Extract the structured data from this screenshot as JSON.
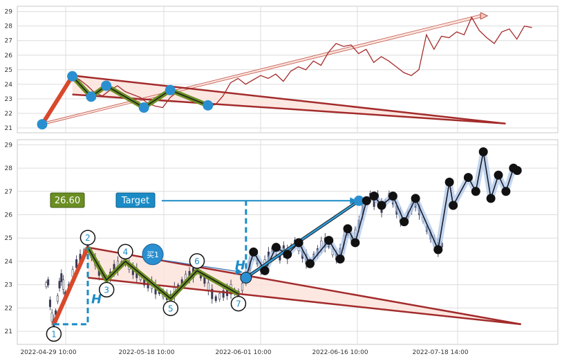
{
  "chart_data": [
    {
      "type": "line",
      "panel": "overview",
      "ylim": [
        21,
        29
      ],
      "yticks": [
        "21",
        "22",
        "23",
        "24",
        "25",
        "26",
        "27",
        "28",
        "29"
      ],
      "price_series": [
        [
          0,
          21.3
        ],
        [
          2,
          22.0
        ],
        [
          5,
          23.5
        ],
        [
          8,
          24.6
        ],
        [
          10,
          24.3
        ],
        [
          12,
          23.9
        ],
        [
          14,
          23.4
        ],
        [
          16,
          23.2
        ],
        [
          18,
          23.6
        ],
        [
          20,
          23.9
        ],
        [
          22,
          23.5
        ],
        [
          24,
          23.3
        ],
        [
          26,
          23.1
        ],
        [
          28,
          22.7
        ],
        [
          30,
          22.5
        ],
        [
          32,
          22.4
        ],
        [
          34,
          23.1
        ],
        [
          36,
          23.5
        ],
        [
          38,
          23.3
        ],
        [
          40,
          23.0
        ],
        [
          42,
          22.6
        ],
        [
          44,
          22.5
        ],
        [
          46,
          22.6
        ],
        [
          48,
          23.2
        ],
        [
          50,
          24.1
        ],
        [
          52,
          24.4
        ],
        [
          54,
          24.0
        ],
        [
          56,
          24.3
        ],
        [
          58,
          24.6
        ],
        [
          60,
          24.4
        ],
        [
          62,
          24.7
        ],
        [
          64,
          24.2
        ],
        [
          66,
          24.9
        ],
        [
          68,
          25.2
        ],
        [
          70,
          25.0
        ],
        [
          72,
          25.6
        ],
        [
          74,
          25.3
        ],
        [
          76,
          26.2
        ],
        [
          78,
          26.8
        ],
        [
          80,
          26.6
        ],
        [
          82,
          26.7
        ],
        [
          84,
          26.1
        ],
        [
          86,
          26.4
        ],
        [
          88,
          25.5
        ],
        [
          90,
          25.9
        ],
        [
          92,
          25.6
        ],
        [
          94,
          25.2
        ],
        [
          96,
          24.8
        ],
        [
          98,
          24.6
        ],
        [
          100,
          25.0
        ],
        [
          102,
          27.4
        ],
        [
          104,
          26.4
        ],
        [
          106,
          27.3
        ],
        [
          108,
          27.2
        ],
        [
          110,
          27.6
        ],
        [
          112,
          27.4
        ],
        [
          114,
          28.6
        ],
        [
          116,
          27.7
        ],
        [
          118,
          27.2
        ],
        [
          120,
          26.8
        ],
        [
          122,
          27.6
        ],
        [
          124,
          27.8
        ],
        [
          126,
          27.1
        ],
        [
          128,
          28.0
        ],
        [
          130,
          27.9
        ]
      ],
      "zigzag_points": [
        [
          0,
          21.25
        ],
        [
          8,
          24.55
        ],
        [
          13,
          23.15
        ],
        [
          17,
          23.9
        ],
        [
          27,
          22.4
        ],
        [
          34,
          23.6
        ],
        [
          44,
          22.55
        ]
      ],
      "upper_trend": [
        [
          8,
          24.6
        ],
        [
          123,
          21.3
        ]
      ],
      "lower_trend": [
        [
          8,
          23.3
        ],
        [
          123,
          21.3
        ]
      ],
      "projection_arrow": [
        [
          0,
          21.3
        ],
        [
          118,
          28.7
        ]
      ]
    },
    {
      "type": "candlestick",
      "panel": "detail",
      "ylim": [
        20.7,
        29.2
      ],
      "yticks": [
        "21",
        "22",
        "23",
        "24",
        "25",
        "26",
        "27",
        "28",
        "29"
      ],
      "xticks": [
        "2022-04-29 10:00",
        "2022-05-18 10:00",
        "2022-06-01 10:00",
        "2022-06-16 10:00",
        "2022-07-18 14:00"
      ],
      "target_value": "26.60",
      "target_label": "Target",
      "buy_label": "买1",
      "h_label": "H",
      "pattern_points": [
        {
          "label": "1",
          "x": 2,
          "y": 21.3
        },
        {
          "label": "2",
          "x": 11,
          "y": 24.6
        },
        {
          "label": "3",
          "x": 16,
          "y": 23.2
        },
        {
          "label": "4",
          "x": 21,
          "y": 24.0
        },
        {
          "label": "5",
          "x": 33,
          "y": 22.4
        },
        {
          "label": "6",
          "x": 40,
          "y": 23.6
        },
        {
          "label": "7",
          "x": 51,
          "y": 22.6
        }
      ],
      "buy_point": [
        53,
        23.3
      ],
      "target_point": [
        83,
        26.6
      ],
      "upper_trend": [
        [
          11,
          24.6
        ],
        [
          126,
          21.3
        ]
      ],
      "lower_trend": [
        [
          11,
          23.3
        ],
        [
          126,
          21.3
        ]
      ],
      "forecast_points": [
        [
          53,
          23.3
        ],
        [
          55,
          24.4
        ],
        [
          58,
          23.6
        ],
        [
          61,
          24.6
        ],
        [
          64,
          24.3
        ],
        [
          67,
          24.8
        ],
        [
          70,
          23.9
        ],
        [
          75,
          24.9
        ],
        [
          78,
          24.1
        ],
        [
          80,
          25.4
        ],
        [
          82,
          24.8
        ],
        [
          85,
          26.6
        ],
        [
          87,
          26.8
        ],
        [
          89,
          26.4
        ],
        [
          92,
          26.8
        ],
        [
          95,
          25.7
        ],
        [
          98,
          26.7
        ],
        [
          104,
          24.5
        ],
        [
          107,
          27.4
        ],
        [
          108,
          26.4
        ],
        [
          112,
          27.6
        ],
        [
          114,
          27.0
        ],
        [
          116,
          28.7
        ],
        [
          118,
          26.7
        ],
        [
          120,
          27.7
        ],
        [
          122,
          27.0
        ],
        [
          124,
          28.0
        ],
        [
          125,
          27.9
        ]
      ],
      "candles": [
        [
          0,
          23.0
        ],
        [
          0.5,
          23.1
        ],
        [
          1,
          22.2
        ],
        [
          1.5,
          21.6
        ],
        [
          2,
          21.3
        ],
        [
          2.5,
          21.8
        ],
        [
          3,
          22.4
        ],
        [
          3.5,
          23.0
        ],
        [
          4,
          23.3
        ],
        [
          4.5,
          23.0
        ],
        [
          5,
          22.6
        ],
        [
          6,
          22.9
        ],
        [
          7,
          23.5
        ],
        [
          8,
          23.9
        ],
        [
          9,
          24.1
        ],
        [
          10,
          24.4
        ],
        [
          11,
          24.6
        ],
        [
          12,
          24.3
        ],
        [
          13,
          24.0
        ],
        [
          14,
          23.6
        ],
        [
          15,
          23.4
        ],
        [
          16,
          23.2
        ],
        [
          17,
          23.4
        ],
        [
          18,
          23.7
        ],
        [
          19,
          23.8
        ],
        [
          20,
          23.9
        ],
        [
          21,
          24.0
        ],
        [
          22,
          23.8
        ],
        [
          23,
          23.6
        ],
        [
          24,
          23.5
        ],
        [
          25,
          23.3
        ],
        [
          26,
          23.1
        ],
        [
          27,
          23.0
        ],
        [
          28,
          23.0
        ],
        [
          29,
          22.8
        ],
        [
          30,
          22.7
        ],
        [
          31,
          22.6
        ],
        [
          32,
          22.5
        ],
        [
          33,
          22.4
        ],
        [
          34,
          22.7
        ],
        [
          35,
          22.9
        ],
        [
          36,
          23.1
        ],
        [
          37,
          23.3
        ],
        [
          38,
          23.4
        ],
        [
          39,
          23.5
        ],
        [
          40,
          23.6
        ],
        [
          41,
          23.4
        ],
        [
          42,
          23.2
        ],
        [
          43,
          22.9
        ],
        [
          44,
          22.6
        ],
        [
          45,
          22.4
        ],
        [
          46,
          22.5
        ],
        [
          47,
          22.6
        ],
        [
          48,
          22.7
        ],
        [
          49,
          22.8
        ],
        [
          50,
          22.7
        ],
        [
          51,
          22.6
        ],
        [
          52,
          22.9
        ],
        [
          53,
          23.3
        ],
        [
          54,
          23.8
        ],
        [
          55,
          24.2
        ],
        [
          56,
          24.0
        ],
        [
          57,
          23.7
        ],
        [
          58,
          23.9
        ],
        [
          59,
          24.2
        ],
        [
          60,
          24.5
        ],
        [
          61,
          24.4
        ],
        [
          62,
          24.2
        ],
        [
          63,
          24.5
        ],
        [
          64,
          24.3
        ],
        [
          65,
          24.6
        ],
        [
          66,
          24.8
        ],
        [
          67,
          24.6
        ],
        [
          68,
          24.3
        ],
        [
          69,
          24.1
        ],
        [
          70,
          24.0
        ],
        [
          71,
          24.2
        ],
        [
          72,
          24.4
        ],
        [
          73,
          24.7
        ],
        [
          74,
          24.8
        ],
        [
          75,
          24.7
        ],
        [
          76,
          24.4
        ],
        [
          77,
          24.2
        ],
        [
          78,
          24.4
        ],
        [
          79,
          24.9
        ],
        [
          80,
          25.2
        ],
        [
          81,
          25.0
        ],
        [
          82,
          25.2
        ],
        [
          83,
          25.6
        ],
        [
          84,
          26.2
        ],
        [
          85,
          26.6
        ],
        [
          86,
          26.8
        ],
        [
          87,
          26.5
        ],
        [
          88,
          26.7
        ],
        [
          89,
          26.3
        ],
        [
          90,
          26.5
        ],
        [
          91,
          26.8
        ],
        [
          92,
          26.6
        ],
        [
          93,
          26.2
        ],
        [
          94,
          25.9
        ],
        [
          95,
          25.7
        ],
        [
          96,
          26.0
        ],
        [
          97,
          26.3
        ],
        [
          98,
          26.5
        ],
        [
          99,
          26.2
        ],
        [
          100,
          25.8
        ],
        [
          101,
          25.4
        ],
        [
          102,
          25.1
        ],
        [
          103,
          24.8
        ],
        [
          104,
          24.6
        ],
        [
          105,
          24.7
        ]
      ]
    }
  ]
}
